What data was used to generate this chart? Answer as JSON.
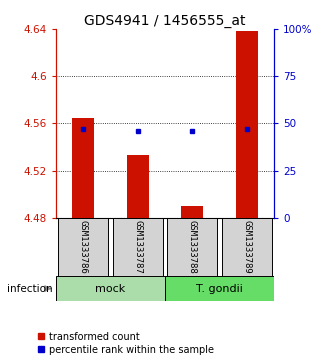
{
  "title": "GDS4941 / 1456555_at",
  "samples": [
    "GSM1333786",
    "GSM1333787",
    "GSM1333788",
    "GSM1333789"
  ],
  "bar_values": [
    4.565,
    4.533,
    4.49,
    4.638
  ],
  "pct_values": [
    47,
    46,
    46,
    47
  ],
  "ylim": [
    4.48,
    4.64
  ],
  "yticks_left": [
    4.48,
    4.52,
    4.56,
    4.6,
    4.64
  ],
  "yticks_right": [
    0,
    25,
    50,
    75,
    100
  ],
  "gridlines": [
    4.52,
    4.56,
    4.6
  ],
  "bar_color": "#cc1100",
  "pct_color": "#0000cc",
  "sample_bg": "#d3d3d3",
  "mock_bg": "#aaddaa",
  "gondii_bg": "#66dd66",
  "bar_width": 0.4,
  "title_fontsize": 10,
  "tick_fontsize": 7.5,
  "sample_fontsize": 6.5,
  "group_fontsize": 8,
  "legend_fontsize": 7,
  "mock_label": "mock",
  "gondii_label": "T. gondii",
  "infection_label": "infection",
  "legend_bar_label": "transformed count",
  "legend_dot_label": "percentile rank within the sample"
}
